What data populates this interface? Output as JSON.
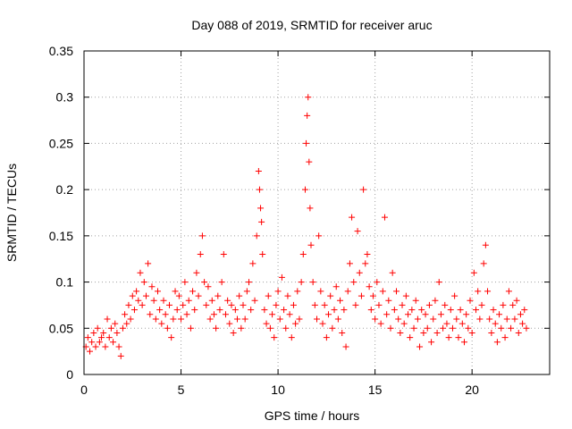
{
  "chart_data": {
    "type": "scatter",
    "title": "Day 088 of 2019, SRMTID for receiver aruc",
    "xlabel": "GPS time / hours",
    "ylabel": "SRMTID / TECUs",
    "xlim": [
      0,
      24
    ],
    "ylim": [
      0,
      0.35
    ],
    "x_ticks": [
      0,
      5,
      10,
      15,
      20
    ],
    "x_tick_labels": [
      "0",
      "5",
      "10",
      "15",
      "20"
    ],
    "y_ticks": [
      0,
      0.05,
      0.1,
      0.15,
      0.2,
      0.25,
      0.3,
      0.35
    ],
    "y_tick_labels": [
      "0",
      "0.05",
      "0.1",
      "0.15",
      "0.2",
      "0.25",
      "0.3",
      "0.35"
    ],
    "grid": true,
    "marker": "+",
    "series": [
      {
        "name": "SRMTID",
        "color": "#ff0000",
        "points": [
          [
            0.1,
            0.03
          ],
          [
            0.2,
            0.04
          ],
          [
            0.3,
            0.025
          ],
          [
            0.4,
            0.035
          ],
          [
            0.5,
            0.045
          ],
          [
            0.6,
            0.03
          ],
          [
            0.7,
            0.05
          ],
          [
            0.8,
            0.035
          ],
          [
            0.9,
            0.04
          ],
          [
            1.0,
            0.045
          ],
          [
            1.1,
            0.03
          ],
          [
            1.2,
            0.06
          ],
          [
            1.3,
            0.04
          ],
          [
            1.4,
            0.05
          ],
          [
            1.5,
            0.035
          ],
          [
            1.6,
            0.055
          ],
          [
            1.7,
            0.045
          ],
          [
            1.8,
            0.03
          ],
          [
            1.9,
            0.02
          ],
          [
            2.0,
            0.05
          ],
          [
            2.1,
            0.065
          ],
          [
            2.2,
            0.055
          ],
          [
            2.3,
            0.075
          ],
          [
            2.4,
            0.06
          ],
          [
            2.5,
            0.085
          ],
          [
            2.6,
            0.07
          ],
          [
            2.7,
            0.09
          ],
          [
            2.8,
            0.08
          ],
          [
            2.9,
            0.11
          ],
          [
            3.0,
            0.075
          ],
          [
            3.1,
            0.1
          ],
          [
            3.2,
            0.085
          ],
          [
            3.3,
            0.12
          ],
          [
            3.4,
            0.065
          ],
          [
            3.5,
            0.095
          ],
          [
            3.6,
            0.08
          ],
          [
            3.7,
            0.06
          ],
          [
            3.8,
            0.09
          ],
          [
            3.9,
            0.07
          ],
          [
            4.0,
            0.055
          ],
          [
            4.1,
            0.08
          ],
          [
            4.2,
            0.065
          ],
          [
            4.3,
            0.05
          ],
          [
            4.4,
            0.075
          ],
          [
            4.5,
            0.04
          ],
          [
            4.6,
            0.06
          ],
          [
            4.7,
            0.09
          ],
          [
            4.8,
            0.07
          ],
          [
            4.9,
            0.085
          ],
          [
            5.0,
            0.06
          ],
          [
            5.1,
            0.075
          ],
          [
            5.2,
            0.1
          ],
          [
            5.3,
            0.065
          ],
          [
            5.4,
            0.08
          ],
          [
            5.5,
            0.05
          ],
          [
            5.6,
            0.09
          ],
          [
            5.7,
            0.07
          ],
          [
            5.8,
            0.11
          ],
          [
            5.9,
            0.085
          ],
          [
            6.0,
            0.13
          ],
          [
            6.1,
            0.15
          ],
          [
            6.2,
            0.1
          ],
          [
            6.3,
            0.075
          ],
          [
            6.4,
            0.095
          ],
          [
            6.5,
            0.06
          ],
          [
            6.6,
            0.08
          ],
          [
            6.7,
            0.065
          ],
          [
            6.8,
            0.05
          ],
          [
            6.9,
            0.085
          ],
          [
            7.0,
            0.07
          ],
          [
            7.1,
            0.1
          ],
          [
            7.2,
            0.13
          ],
          [
            7.3,
            0.065
          ],
          [
            7.4,
            0.08
          ],
          [
            7.5,
            0.055
          ],
          [
            7.6,
            0.075
          ],
          [
            7.7,
            0.045
          ],
          [
            7.8,
            0.07
          ],
          [
            7.9,
            0.06
          ],
          [
            8.0,
            0.085
          ],
          [
            8.1,
            0.05
          ],
          [
            8.2,
            0.075
          ],
          [
            8.3,
            0.06
          ],
          [
            8.4,
            0.09
          ],
          [
            8.5,
            0.1
          ],
          [
            8.6,
            0.07
          ],
          [
            8.7,
            0.12
          ],
          [
            8.8,
            0.08
          ],
          [
            8.9,
            0.15
          ],
          [
            9.0,
            0.22
          ],
          [
            9.05,
            0.2
          ],
          [
            9.1,
            0.18
          ],
          [
            9.15,
            0.165
          ],
          [
            9.2,
            0.13
          ],
          [
            9.3,
            0.07
          ],
          [
            9.4,
            0.055
          ],
          [
            9.5,
            0.085
          ],
          [
            9.6,
            0.05
          ],
          [
            9.7,
            0.065
          ],
          [
            9.8,
            0.04
          ],
          [
            9.9,
            0.075
          ],
          [
            10.0,
            0.09
          ],
          [
            10.1,
            0.06
          ],
          [
            10.2,
            0.105
          ],
          [
            10.3,
            0.07
          ],
          [
            10.4,
            0.05
          ],
          [
            10.5,
            0.085
          ],
          [
            10.6,
            0.065
          ],
          [
            10.7,
            0.04
          ],
          [
            10.8,
            0.075
          ],
          [
            10.9,
            0.055
          ],
          [
            11.0,
            0.09
          ],
          [
            11.1,
            0.06
          ],
          [
            11.2,
            0.1
          ],
          [
            11.3,
            0.13
          ],
          [
            11.4,
            0.2
          ],
          [
            11.45,
            0.25
          ],
          [
            11.5,
            0.28
          ],
          [
            11.55,
            0.3
          ],
          [
            11.6,
            0.23
          ],
          [
            11.65,
            0.18
          ],
          [
            11.7,
            0.14
          ],
          [
            11.8,
            0.1
          ],
          [
            11.9,
            0.075
          ],
          [
            12.0,
            0.06
          ],
          [
            12.1,
            0.15
          ],
          [
            12.2,
            0.09
          ],
          [
            12.3,
            0.055
          ],
          [
            12.4,
            0.075
          ],
          [
            12.5,
            0.04
          ],
          [
            12.6,
            0.065
          ],
          [
            12.7,
            0.085
          ],
          [
            12.8,
            0.05
          ],
          [
            12.9,
            0.07
          ],
          [
            13.0,
            0.095
          ],
          [
            13.1,
            0.06
          ],
          [
            13.2,
            0.08
          ],
          [
            13.3,
            0.045
          ],
          [
            13.4,
            0.07
          ],
          [
            13.5,
            0.03
          ],
          [
            13.6,
            0.09
          ],
          [
            13.7,
            0.12
          ],
          [
            13.8,
            0.17
          ],
          [
            13.9,
            0.1
          ],
          [
            14.0,
            0.075
          ],
          [
            14.1,
            0.155
          ],
          [
            14.2,
            0.11
          ],
          [
            14.3,
            0.085
          ],
          [
            14.4,
            0.2
          ],
          [
            14.5,
            0.12
          ],
          [
            14.6,
            0.13
          ],
          [
            14.7,
            0.095
          ],
          [
            14.8,
            0.07
          ],
          [
            14.9,
            0.085
          ],
          [
            15.0,
            0.06
          ],
          [
            15.1,
            0.1
          ],
          [
            15.2,
            0.075
          ],
          [
            15.3,
            0.055
          ],
          [
            15.4,
            0.09
          ],
          [
            15.5,
            0.17
          ],
          [
            15.6,
            0.065
          ],
          [
            15.7,
            0.08
          ],
          [
            15.8,
            0.05
          ],
          [
            15.9,
            0.11
          ],
          [
            16.0,
            0.07
          ],
          [
            16.1,
            0.09
          ],
          [
            16.2,
            0.06
          ],
          [
            16.3,
            0.045
          ],
          [
            16.4,
            0.075
          ],
          [
            16.5,
            0.055
          ],
          [
            16.6,
            0.085
          ],
          [
            16.7,
            0.065
          ],
          [
            16.8,
            0.04
          ],
          [
            16.9,
            0.07
          ],
          [
            17.0,
            0.05
          ],
          [
            17.1,
            0.08
          ],
          [
            17.2,
            0.06
          ],
          [
            17.3,
            0.03
          ],
          [
            17.4,
            0.07
          ],
          [
            17.5,
            0.045
          ],
          [
            17.6,
            0.065
          ],
          [
            17.7,
            0.05
          ],
          [
            17.8,
            0.075
          ],
          [
            17.9,
            0.035
          ],
          [
            18.0,
            0.06
          ],
          [
            18.1,
            0.08
          ],
          [
            18.2,
            0.045
          ],
          [
            18.3,
            0.1
          ],
          [
            18.4,
            0.065
          ],
          [
            18.5,
            0.05
          ],
          [
            18.6,
            0.075
          ],
          [
            18.7,
            0.055
          ],
          [
            18.8,
            0.04
          ],
          [
            18.9,
            0.07
          ],
          [
            19.0,
            0.05
          ],
          [
            19.1,
            0.085
          ],
          [
            19.2,
            0.06
          ],
          [
            19.3,
            0.04
          ],
          [
            19.4,
            0.07
          ],
          [
            19.5,
            0.055
          ],
          [
            19.6,
            0.035
          ],
          [
            19.7,
            0.065
          ],
          [
            19.8,
            0.05
          ],
          [
            19.9,
            0.08
          ],
          [
            20.0,
            0.045
          ],
          [
            20.1,
            0.11
          ],
          [
            20.2,
            0.07
          ],
          [
            20.3,
            0.09
          ],
          [
            20.4,
            0.06
          ],
          [
            20.5,
            0.075
          ],
          [
            20.6,
            0.12
          ],
          [
            20.7,
            0.14
          ],
          [
            20.8,
            0.09
          ],
          [
            20.9,
            0.06
          ],
          [
            21.0,
            0.045
          ],
          [
            21.1,
            0.07
          ],
          [
            21.2,
            0.055
          ],
          [
            21.3,
            0.035
          ],
          [
            21.4,
            0.065
          ],
          [
            21.5,
            0.05
          ],
          [
            21.6,
            0.075
          ],
          [
            21.7,
            0.04
          ],
          [
            21.8,
            0.06
          ],
          [
            21.9,
            0.09
          ],
          [
            22.0,
            0.05
          ],
          [
            22.1,
            0.075
          ],
          [
            22.2,
            0.06
          ],
          [
            22.3,
            0.08
          ],
          [
            22.4,
            0.045
          ],
          [
            22.5,
            0.065
          ],
          [
            22.6,
            0.055
          ],
          [
            22.7,
            0.07
          ],
          [
            22.8,
            0.05
          ]
        ]
      }
    ]
  }
}
